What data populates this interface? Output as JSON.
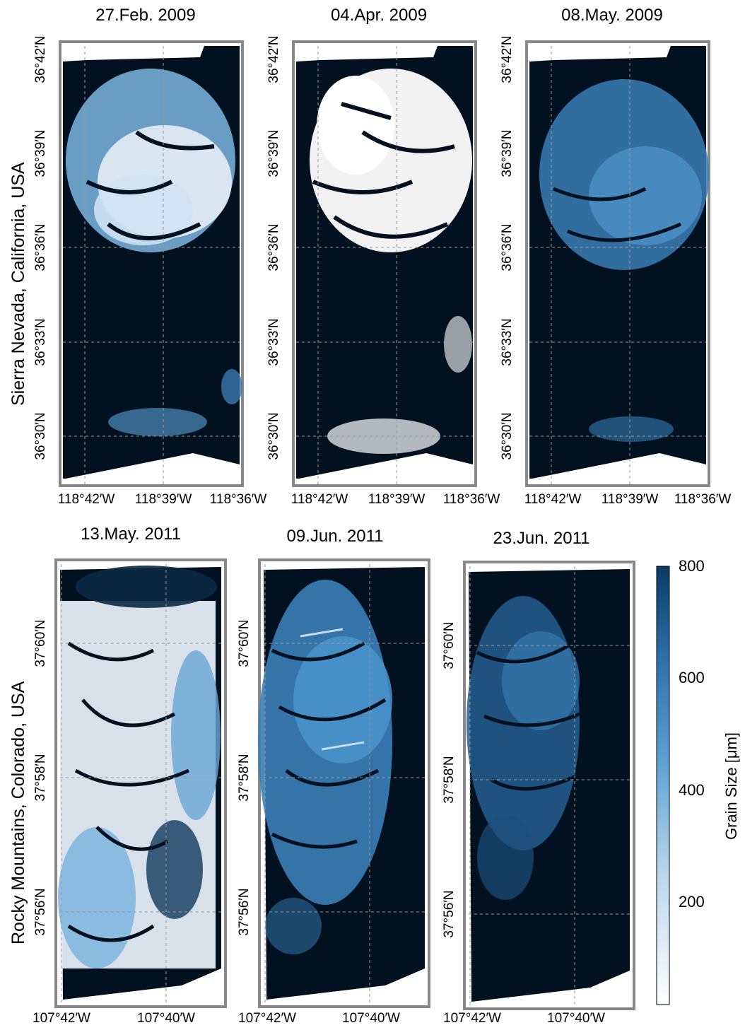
{
  "colors": {
    "background": "#02111f",
    "frame": "#888888",
    "grid": "#9a9a9a",
    "scale_low": "#ffffff",
    "scale_mid": "#5da3d3",
    "scale_high": "#0a3b63"
  },
  "rows": [
    {
      "region_label": "Sierra Nevada, California, USA",
      "lat_labels": [
        "36°42′N",
        "36°39′N",
        "36°36′N",
        "36°33′N",
        "36°30′N"
      ],
      "lon_labels": [
        "118°42′W",
        "118°39′W",
        "118°36′W"
      ],
      "panels": [
        {
          "date": "27.Feb. 2009",
          "snow": "light-blue"
        },
        {
          "date": "04.Apr. 2009",
          "snow": "white"
        },
        {
          "date": "08.May. 2009",
          "snow": "medium-blue"
        }
      ]
    },
    {
      "region_label": "Rocky Mountains, Colorado, USA",
      "lat_labels": [
        "37°60′N",
        "37°58′N",
        "37°56′N"
      ],
      "lon_labels": [
        "107°42′W",
        "107°40′W"
      ],
      "panels": [
        {
          "date": "13.May. 2011",
          "snow": "white-to-light-blue"
        },
        {
          "date": "09.Jun. 2011",
          "snow": "medium-blue"
        },
        {
          "date": "23.Jun. 2011",
          "snow": "dark-blue"
        }
      ]
    }
  ],
  "colorbar": {
    "title": "Grain Size [μm]",
    "ticks": [
      "800",
      "600",
      "400",
      "200"
    ],
    "range": [
      0,
      800
    ]
  }
}
